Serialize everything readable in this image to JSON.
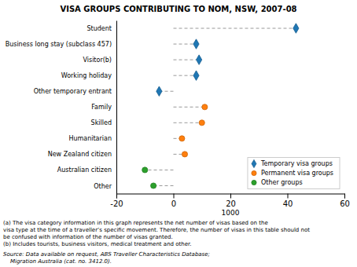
{
  "chart_data": {
    "type": "dot",
    "orientation": "horizontal",
    "title": "VISA GROUPS CONTRIBUTING TO NOM, NSW, 2007-08",
    "xlabel": "1000",
    "categories": [
      "Student",
      "Business long stay (subclass 457)",
      "Visitor(b)",
      "Working holiday",
      "Other temporary entrant",
      "Family",
      "Skilled",
      "Humanitarian",
      "New Zealand citizen",
      "Australian citizen",
      "Other"
    ],
    "series": [
      {
        "name": "Temporary visa groups",
        "marker": "diamond",
        "values": [
          43,
          8,
          9,
          8,
          -5,
          null,
          null,
          null,
          null,
          null,
          null
        ]
      },
      {
        "name": "Permanent visa groups",
        "marker": "circle",
        "values": [
          null,
          null,
          null,
          null,
          null,
          11,
          10,
          3,
          4,
          null,
          null
        ]
      },
      {
        "name": "Other groups",
        "marker": "circle",
        "values": [
          null,
          null,
          null,
          null,
          null,
          null,
          null,
          null,
          null,
          -10,
          -7
        ]
      }
    ],
    "line_style": "dashed",
    "xlim": [
      -20,
      60
    ],
    "xticks": [
      -20,
      0,
      20,
      40,
      60
    ],
    "grid": false,
    "legend": "lower right",
    "footnotes": [
      "(a) The visa category information in this graph represents the net number of visas based on the",
      "visa type at the time of a traveller’s specific movement. Therefore, the number of visas in this table should not",
      "be confused with information of the number of visas granted.",
      "(b) Includes tourists, business visitors, medical treatment and other."
    ],
    "source": [
      "Source: Data available on request, ABS Traveller Characteristics Database;",
      "    Migration Australia (cat. no. 3412.0)."
    ]
  }
}
